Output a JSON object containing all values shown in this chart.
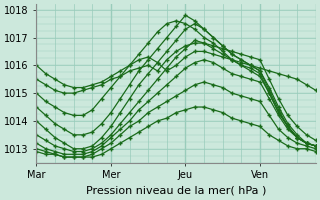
{
  "bg_color": "#cce8dc",
  "plot_bg_color": "#cce8dc",
  "line_color": "#1a6b1a",
  "xlabel": "Pression niveau de la mer( hPa )",
  "xlim": [
    0,
    90
  ],
  "ylim": [
    1012.5,
    1018.2
  ],
  "yticks": [
    1013,
    1014,
    1015,
    1016,
    1017,
    1018
  ],
  "xtick_positions": [
    0,
    24,
    48,
    72
  ],
  "xtick_labels": [
    "Mar",
    "Mer",
    "Jeu",
    "Ven"
  ],
  "grid_color": "#99ccbb",
  "vline_x": [
    0,
    24,
    48,
    72,
    90
  ],
  "series": [
    [
      1016.0,
      1015.7,
      1015.5,
      1015.3,
      1015.2,
      1015.2,
      1015.3,
      1015.4,
      1015.6,
      1015.8,
      1016.0,
      1016.2,
      1016.3,
      1016.1,
      1015.8,
      1016.0,
      1016.3,
      1016.5,
      1016.5,
      1016.4,
      1016.3,
      1016.2,
      1016.1,
      1016.0,
      1015.9,
      1015.8,
      1015.7,
      1015.6,
      1015.5,
      1015.3,
      1015.1
    ],
    [
      1015.5,
      1015.3,
      1015.1,
      1015.0,
      1015.0,
      1015.1,
      1015.2,
      1015.3,
      1015.5,
      1015.6,
      1015.8,
      1015.9,
      1016.0,
      1015.8,
      1016.2,
      1016.5,
      1016.7,
      1016.8,
      1016.8,
      1016.7,
      1016.6,
      1016.5,
      1016.4,
      1016.3,
      1016.2,
      1015.5,
      1014.8,
      1014.2,
      1013.8,
      1013.5,
      1013.3
    ],
    [
      1015.0,
      1014.7,
      1014.5,
      1014.3,
      1014.2,
      1014.2,
      1014.4,
      1014.8,
      1015.2,
      1015.6,
      1016.0,
      1016.4,
      1016.8,
      1017.2,
      1017.5,
      1017.6,
      1017.5,
      1017.3,
      1017.0,
      1016.8,
      1016.5,
      1016.2,
      1016.0,
      1015.8,
      1015.6,
      1015.0,
      1014.3,
      1013.8,
      1013.4,
      1013.2,
      1013.1
    ],
    [
      1014.5,
      1014.2,
      1013.9,
      1013.7,
      1013.5,
      1013.5,
      1013.6,
      1013.9,
      1014.3,
      1014.8,
      1015.3,
      1015.8,
      1016.2,
      1016.6,
      1017.0,
      1017.4,
      1017.8,
      1017.6,
      1017.3,
      1017.0,
      1016.7,
      1016.4,
      1016.2,
      1016.0,
      1015.8,
      1015.2,
      1014.5,
      1013.9,
      1013.5,
      1013.2,
      1013.1
    ],
    [
      1014.0,
      1013.7,
      1013.4,
      1013.2,
      1013.0,
      1013.0,
      1013.1,
      1013.4,
      1013.8,
      1014.3,
      1014.8,
      1015.3,
      1015.7,
      1016.1,
      1016.5,
      1016.9,
      1017.3,
      1017.5,
      1017.3,
      1017.0,
      1016.7,
      1016.4,
      1016.2,
      1016.0,
      1015.8,
      1015.1,
      1014.4,
      1013.8,
      1013.4,
      1013.2,
      1013.1
    ],
    [
      1013.5,
      1013.3,
      1013.1,
      1013.0,
      1012.9,
      1012.9,
      1013.0,
      1013.2,
      1013.5,
      1013.9,
      1014.3,
      1014.7,
      1015.1,
      1015.5,
      1015.9,
      1016.3,
      1016.6,
      1016.9,
      1016.8,
      1016.6,
      1016.4,
      1016.2,
      1016.0,
      1015.9,
      1015.7,
      1015.0,
      1014.3,
      1013.8,
      1013.4,
      1013.2,
      1013.1
    ],
    [
      1013.2,
      1013.0,
      1012.9,
      1012.8,
      1012.8,
      1012.8,
      1012.9,
      1013.1,
      1013.4,
      1013.7,
      1014.0,
      1014.4,
      1014.7,
      1015.0,
      1015.3,
      1015.6,
      1015.9,
      1016.1,
      1016.2,
      1016.1,
      1015.9,
      1015.7,
      1015.6,
      1015.5,
      1015.4,
      1014.8,
      1014.2,
      1013.7,
      1013.4,
      1013.2,
      1013.1
    ],
    [
      1013.0,
      1012.9,
      1012.8,
      1012.7,
      1012.7,
      1012.7,
      1012.8,
      1013.0,
      1013.2,
      1013.5,
      1013.8,
      1014.0,
      1014.3,
      1014.5,
      1014.7,
      1014.9,
      1015.1,
      1015.3,
      1015.4,
      1015.3,
      1015.2,
      1015.0,
      1014.9,
      1014.8,
      1014.7,
      1014.2,
      1013.7,
      1013.4,
      1013.2,
      1013.1,
      1013.0
    ],
    [
      1012.9,
      1012.8,
      1012.8,
      1012.7,
      1012.7,
      1012.7,
      1012.7,
      1012.8,
      1013.0,
      1013.2,
      1013.4,
      1013.6,
      1013.8,
      1014.0,
      1014.1,
      1014.3,
      1014.4,
      1014.5,
      1014.5,
      1014.4,
      1014.3,
      1014.1,
      1014.0,
      1013.9,
      1013.8,
      1013.5,
      1013.3,
      1013.1,
      1013.0,
      1013.0,
      1012.9
    ]
  ]
}
